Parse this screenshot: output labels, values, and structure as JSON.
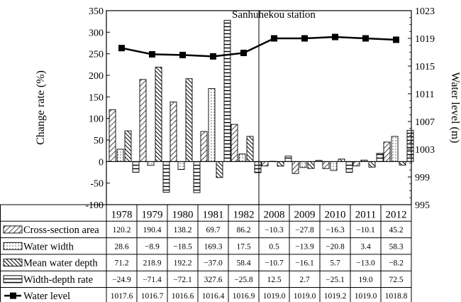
{
  "chart_data": {
    "type": "bar",
    "annotation": "Sanhuhekou station",
    "ylabel_left": "Change rate (%)",
    "ylabel_right": "Water level (m)",
    "ylim_left": [
      -100,
      350
    ],
    "yticks_left": [
      "350",
      "300",
      "250",
      "200",
      "150",
      "100",
      "50",
      "0",
      "-50",
      "-100"
    ],
    "ylim_right": [
      995,
      1023
    ],
    "yticks_right": [
      "1023",
      "1019",
      "1015",
      "1011",
      "1007",
      "1003",
      "999",
      "995"
    ],
    "categories": [
      "1978",
      "1979",
      "1980",
      "1981",
      "1982",
      "2008",
      "2009",
      "2010",
      "2011",
      "2012"
    ],
    "bar_series": [
      {
        "name": "Cross-section area",
        "values": [
          120.2,
          190.4,
          138.2,
          69.7,
          86.2,
          -10.3,
          -27.8,
          -16.3,
          -10.1,
          45.2
        ],
        "labels": [
          "120.2",
          "190.4",
          "138.2",
          "69.7",
          "86.2",
          "−10.3",
          "−27.8",
          "−16.3",
          "−10.1",
          "45.2"
        ]
      },
      {
        "name": "Water width",
        "values": [
          28.6,
          -8.9,
          -18.5,
          169.3,
          17.5,
          0.5,
          -13.9,
          -20.8,
          3.4,
          58.3
        ],
        "labels": [
          "28.6",
          "−8.9",
          "−18.5",
          "169.3",
          "17.5",
          "0.5",
          "−13.9",
          "−20.8",
          "3.4",
          "58.3"
        ]
      },
      {
        "name": "Mean water depth",
        "values": [
          71.2,
          218.9,
          192.2,
          -37.0,
          58.4,
          -10.7,
          -16.1,
          5.7,
          -13.0,
          -8.2
        ],
        "labels": [
          "71.2",
          "218.9",
          "192.2",
          "−37.0",
          "58.4",
          "−10.7",
          "−16.1",
          "5.7",
          "−13.0",
          "−8.2"
        ]
      },
      {
        "name": "Width-depth rate",
        "values": [
          -24.9,
          -71.4,
          -72.1,
          327.6,
          -25.8,
          12.5,
          2.7,
          -25.1,
          19.0,
          72.5
        ],
        "labels": [
          "−24.9",
          "−71.4",
          "−72.1",
          "327.6",
          "−25.8",
          "12.5",
          "2.7",
          "−25.1",
          "19.0",
          "72.5"
        ]
      }
    ],
    "line_series": {
      "name": "Water level",
      "values": [
        1017.6,
        1016.7,
        1016.6,
        1016.4,
        1016.9,
        1019.0,
        1019.0,
        1019.2,
        1019.0,
        1018.8
      ],
      "labels": [
        "1017.6",
        "1016.7",
        "1016.6",
        "1016.4",
        "1016.9",
        "1019.0",
        "1019.0",
        "1019.2",
        "1019.0",
        "1018.8"
      ]
    }
  }
}
